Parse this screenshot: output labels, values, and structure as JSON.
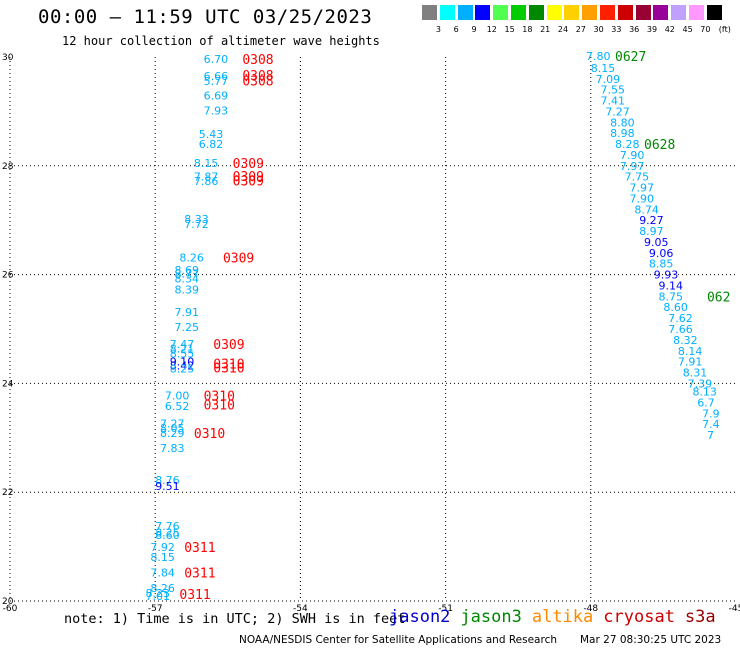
{
  "chart_data": {
    "type": "scatter",
    "title": "00:00 – 11:59 UTC 03/25/2023",
    "subtitle": "12 hour collection of altimeter wave heights",
    "xlim": [
      -60,
      -45
    ],
    "ylim": [
      20,
      30
    ],
    "x_ticks": [
      "-60",
      "-57",
      "-54",
      "-51",
      "-48",
      "-45"
    ],
    "y_ticks": [
      "20",
      "22",
      "24",
      "26",
      "28",
      "30"
    ],
    "grid": true,
    "color_scale": {
      "unit": "(ft)",
      "labels": [
        "3",
        "6",
        "9",
        "12",
        "15",
        "18",
        "21",
        "24",
        "27",
        "30",
        "33",
        "36",
        "39",
        "42",
        "45",
        "70"
      ],
      "colors": [
        "#808080",
        "#00ffff",
        "#00b0ff",
        "#0000ff",
        "#50ff50",
        "#00cc00",
        "#008800",
        "#ffff00",
        "#ffd000",
        "#ffa000",
        "#ff2000",
        "#cc0000",
        "#990033",
        "#990099",
        "#c0a0ff",
        "#ff99ff",
        "#000000"
      ]
    },
    "observations": [
      {
        "lon": -56.0,
        "lat": 29.96,
        "value": "6.70",
        "color": "#00b0ff"
      },
      {
        "lon": -56.0,
        "lat": 29.65,
        "value": "6.66",
        "color": "#00b0ff"
      },
      {
        "lon": -56.0,
        "lat": 29.56,
        "value": "5.77",
        "color": "#00b0ff"
      },
      {
        "lon": -56.0,
        "lat": 29.29,
        "value": "6.69",
        "color": "#00b0ff"
      },
      {
        "lon": -56.0,
        "lat": 29.02,
        "value": "7.93",
        "color": "#00b0ff"
      },
      {
        "lon": -56.1,
        "lat": 28.58,
        "value": "5.43",
        "color": "#00b0ff"
      },
      {
        "lon": -56.1,
        "lat": 28.4,
        "value": "6.82",
        "color": "#00b0ff"
      },
      {
        "lon": -56.2,
        "lat": 28.05,
        "value": "8.15",
        "color": "#00b0ff"
      },
      {
        "lon": -56.2,
        "lat": 27.8,
        "value": "7.87",
        "color": "#00b0ff"
      },
      {
        "lon": -56.2,
        "lat": 27.72,
        "value": "7.86",
        "color": "#00b0ff"
      },
      {
        "lon": -56.4,
        "lat": 27.02,
        "value": "8.33",
        "color": "#00b0ff"
      },
      {
        "lon": -56.4,
        "lat": 26.93,
        "value": "7.72",
        "color": "#00b0ff"
      },
      {
        "lon": -56.5,
        "lat": 26.31,
        "value": "8.26",
        "color": "#00b0ff"
      },
      {
        "lon": -56.6,
        "lat": 26.08,
        "value": "8.69",
        "color": "#00b0ff"
      },
      {
        "lon": -56.6,
        "lat": 26.02,
        "value": "8.77",
        "color": "#00b0ff"
      },
      {
        "lon": -56.6,
        "lat": 25.93,
        "value": "8.34",
        "color": "#00b0ff"
      },
      {
        "lon": -56.6,
        "lat": 25.73,
        "value": "8.39",
        "color": "#00b0ff"
      },
      {
        "lon": -56.6,
        "lat": 25.31,
        "value": "7.91",
        "color": "#00b0ff"
      },
      {
        "lon": -56.6,
        "lat": 25.04,
        "value": "7.25",
        "color": "#00b0ff"
      },
      {
        "lon": -56.7,
        "lat": 24.72,
        "value": "7.47",
        "color": "#00b0ff"
      },
      {
        "lon": -56.7,
        "lat": 24.64,
        "value": "8.21",
        "color": "#00b0ff"
      },
      {
        "lon": -56.7,
        "lat": 24.55,
        "value": "8.55",
        "color": "#00b0ff"
      },
      {
        "lon": -56.7,
        "lat": 24.4,
        "value": "9.10",
        "color": "#0000ff"
      },
      {
        "lon": -56.7,
        "lat": 24.33,
        "value": "8.42",
        "color": "#0000ff"
      },
      {
        "lon": -56.7,
        "lat": 24.27,
        "value": "8.25",
        "color": "#00b0ff"
      },
      {
        "lon": -56.8,
        "lat": 23.78,
        "value": "7.00",
        "color": "#00b0ff"
      },
      {
        "lon": -56.8,
        "lat": 23.58,
        "value": "6.52",
        "color": "#00b0ff"
      },
      {
        "lon": -56.9,
        "lat": 23.26,
        "value": "7.27",
        "color": "#00b0ff"
      },
      {
        "lon": -56.9,
        "lat": 23.18,
        "value": "8.05",
        "color": "#00b0ff"
      },
      {
        "lon": -56.9,
        "lat": 23.09,
        "value": "8.29",
        "color": "#00b0ff"
      },
      {
        "lon": -56.9,
        "lat": 22.81,
        "value": "7.83",
        "color": "#00b0ff"
      },
      {
        "lon": -57.0,
        "lat": 22.22,
        "value": "8.76",
        "color": "#00b0ff"
      },
      {
        "lon": -57.0,
        "lat": 22.11,
        "value": "9.51",
        "color": "#0000ff"
      },
      {
        "lon": -57.0,
        "lat": 21.38,
        "value": "7.76",
        "color": "#00b0ff"
      },
      {
        "lon": -57.0,
        "lat": 21.26,
        "value": "8.25",
        "color": "#00b0ff"
      },
      {
        "lon": -57.0,
        "lat": 21.21,
        "value": "8.60",
        "color": "#00b0ff"
      },
      {
        "lon": -57.1,
        "lat": 20.99,
        "value": "7.92",
        "color": "#00b0ff"
      },
      {
        "lon": -57.1,
        "lat": 20.81,
        "value": "8.15",
        "color": "#00b0ff"
      },
      {
        "lon": -57.1,
        "lat": 20.52,
        "value": "7.84",
        "color": "#00b0ff"
      },
      {
        "lon": -57.1,
        "lat": 20.24,
        "value": "8.26",
        "color": "#00b0ff"
      },
      {
        "lon": -57.2,
        "lat": 20.15,
        "value": "8.23",
        "color": "#00b0ff"
      },
      {
        "lon": -57.2,
        "lat": 20.09,
        "value": "7.01",
        "color": "#00b0ff"
      },
      {
        "lon": -48.1,
        "lat": 30.02,
        "value": "7.80",
        "color": "#00b0ff"
      },
      {
        "lon": -48.0,
        "lat": 29.8,
        "value": "8.15",
        "color": "#00b0ff"
      },
      {
        "lon": -47.9,
        "lat": 29.6,
        "value": "7.09",
        "color": "#00b0ff"
      },
      {
        "lon": -47.8,
        "lat": 29.4,
        "value": "7.55",
        "color": "#00b0ff"
      },
      {
        "lon": -47.8,
        "lat": 29.2,
        "value": "7.41",
        "color": "#00b0ff"
      },
      {
        "lon": -47.7,
        "lat": 29.0,
        "value": "7.27",
        "color": "#00b0ff"
      },
      {
        "lon": -47.6,
        "lat": 28.8,
        "value": "8.80",
        "color": "#00b0ff"
      },
      {
        "lon": -47.6,
        "lat": 28.6,
        "value": "8.98",
        "color": "#00b0ff"
      },
      {
        "lon": -47.5,
        "lat": 28.4,
        "value": "8.28",
        "color": "#00b0ff"
      },
      {
        "lon": -47.4,
        "lat": 28.2,
        "value": "7.90",
        "color": "#00b0ff"
      },
      {
        "lon": -47.4,
        "lat": 28.0,
        "value": "7.97",
        "color": "#00b0ff"
      },
      {
        "lon": -47.3,
        "lat": 27.8,
        "value": "7.75",
        "color": "#00b0ff"
      },
      {
        "lon": -47.2,
        "lat": 27.6,
        "value": "7.97",
        "color": "#00b0ff"
      },
      {
        "lon": -47.2,
        "lat": 27.4,
        "value": "7.90",
        "color": "#00b0ff"
      },
      {
        "lon": -47.1,
        "lat": 27.2,
        "value": "8.74",
        "color": "#00b0ff"
      },
      {
        "lon": -47.0,
        "lat": 27.0,
        "value": "9.27",
        "color": "#0000ff"
      },
      {
        "lon": -47.0,
        "lat": 26.8,
        "value": "8.97",
        "color": "#00b0ff"
      },
      {
        "lon": -46.9,
        "lat": 26.6,
        "value": "9.05",
        "color": "#0000ff"
      },
      {
        "lon": -46.8,
        "lat": 26.4,
        "value": "9.06",
        "color": "#0000ff"
      },
      {
        "lon": -46.8,
        "lat": 26.2,
        "value": "8.85",
        "color": "#00b0ff"
      },
      {
        "lon": -46.7,
        "lat": 26.0,
        "value": "9.93",
        "color": "#0000ff"
      },
      {
        "lon": -46.6,
        "lat": 25.8,
        "value": "9.14",
        "color": "#0000ff"
      },
      {
        "lon": -46.6,
        "lat": 25.6,
        "value": "8.75",
        "color": "#00b0ff"
      },
      {
        "lon": -46.5,
        "lat": 25.4,
        "value": "8.60",
        "color": "#00b0ff"
      },
      {
        "lon": -46.4,
        "lat": 25.2,
        "value": "7.62",
        "color": "#00b0ff"
      },
      {
        "lon": -46.4,
        "lat": 25.0,
        "value": "7.66",
        "color": "#00b0ff"
      },
      {
        "lon": -46.3,
        "lat": 24.8,
        "value": "8.32",
        "color": "#00b0ff"
      },
      {
        "lon": -46.2,
        "lat": 24.6,
        "value": "8.14",
        "color": "#00b0ff"
      },
      {
        "lon": -46.2,
        "lat": 24.4,
        "value": "7.91",
        "color": "#00b0ff"
      },
      {
        "lon": -46.1,
        "lat": 24.2,
        "value": "8.31",
        "color": "#00b0ff"
      },
      {
        "lon": -46.0,
        "lat": 24.0,
        "value": "7.39",
        "color": "#00b0ff"
      },
      {
        "lon": -45.9,
        "lat": 23.85,
        "value": "8.13",
        "color": "#00b0ff"
      },
      {
        "lon": -45.8,
        "lat": 23.65,
        "value": "6.7",
        "color": "#00b0ff"
      },
      {
        "lon": -45.7,
        "lat": 23.45,
        "value": "7.9",
        "color": "#00b0ff"
      },
      {
        "lon": -45.7,
        "lat": 23.25,
        "value": "7.4",
        "color": "#00b0ff"
      },
      {
        "lon": -45.6,
        "lat": 23.05,
        "value": "7",
        "color": "#00b0ff"
      }
    ],
    "time_labels": [
      {
        "lon": -55.2,
        "lat": 29.96,
        "text": "0308",
        "color": "#ff0000"
      },
      {
        "lon": -55.2,
        "lat": 29.67,
        "text": "0308",
        "color": "#ff0000"
      },
      {
        "lon": -55.2,
        "lat": 29.57,
        "text": "0308",
        "color": "#ff0000"
      },
      {
        "lon": -55.4,
        "lat": 28.05,
        "text": "0309",
        "color": "#ff0000"
      },
      {
        "lon": -55.4,
        "lat": 27.81,
        "text": "0309",
        "color": "#ff0000"
      },
      {
        "lon": -55.4,
        "lat": 27.73,
        "text": "0309",
        "color": "#ff0000"
      },
      {
        "lon": -55.6,
        "lat": 26.31,
        "text": "0309",
        "color": "#ff0000"
      },
      {
        "lon": -55.8,
        "lat": 24.72,
        "text": "0309",
        "color": "#ff0000"
      },
      {
        "lon": -55.8,
        "lat": 24.37,
        "text": "0310",
        "color": "#ff0000"
      },
      {
        "lon": -55.8,
        "lat": 24.29,
        "text": "0310",
        "color": "#ff0000"
      },
      {
        "lon": -56.0,
        "lat": 23.78,
        "text": "0310",
        "color": "#ff0000"
      },
      {
        "lon": -56.0,
        "lat": 23.61,
        "text": "0310",
        "color": "#ff0000"
      },
      {
        "lon": -56.2,
        "lat": 23.09,
        "text": "0310",
        "color": "#ff0000"
      },
      {
        "lon": -56.4,
        "lat": 20.99,
        "text": "0311",
        "color": "#ff0000"
      },
      {
        "lon": -56.4,
        "lat": 20.52,
        "text": "0311",
        "color": "#ff0000"
      },
      {
        "lon": -56.5,
        "lat": 20.13,
        "text": "0311",
        "color": "#ff0000"
      },
      {
        "lon": -47.5,
        "lat": 30.02,
        "text": "0627",
        "color": "#008800"
      },
      {
        "lon": -46.9,
        "lat": 28.4,
        "text": "0628",
        "color": "#008800"
      },
      {
        "lon": -45.6,
        "lat": 25.6,
        "text": "062",
        "color": "#008800"
      }
    ]
  },
  "footer": {
    "note": "note: 1) Time is in UTC; 2) SWH is in feet",
    "missions": [
      {
        "name": "jason2",
        "color": "#0000cc"
      },
      {
        "name": "jason3",
        "color": "#008800"
      },
      {
        "name": "altika",
        "color": "#ff8800"
      },
      {
        "name": "cryosat",
        "color": "#cc0000"
      },
      {
        "name": "s3a",
        "color": "#990000"
      }
    ],
    "credit": "NOAA/NESDIS Center for Satellite Applications and Research",
    "timestamp": "Mar 27 08:30:25 UTC 2023"
  }
}
